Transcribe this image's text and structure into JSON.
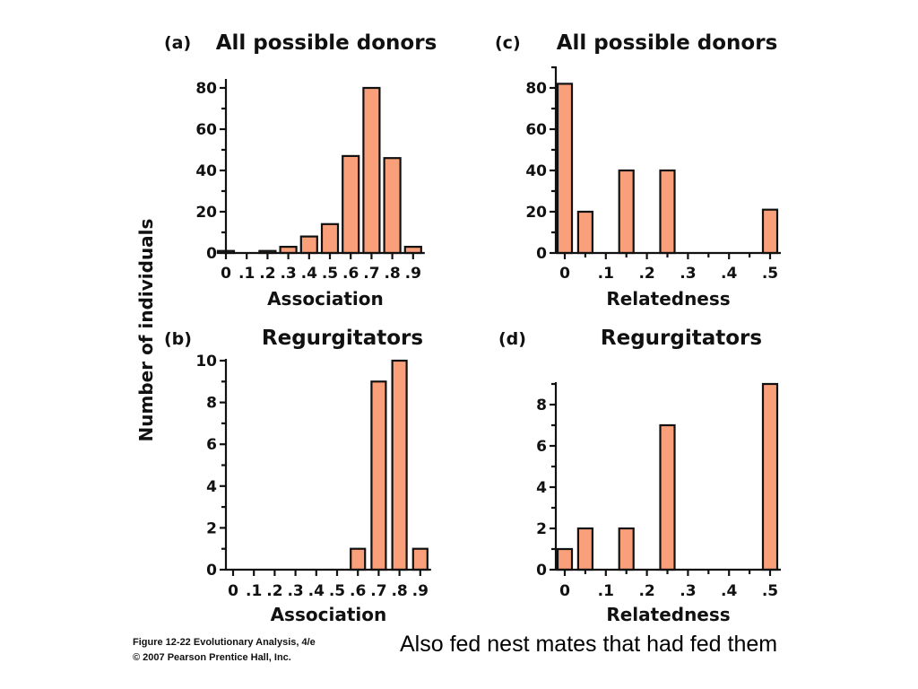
{
  "colors": {
    "bar_fill": "#F9A07B",
    "bar_stroke": "#111111",
    "text": "#111111"
  },
  "shared_ylabel": "Number of individuals",
  "credit": {
    "line1": "Figure 12-22  Evolutionary Analysis, 4/e",
    "line2": "© 2007 Pearson Prentice Hall, Inc."
  },
  "caption": "Also fed nest mates that had fed them",
  "chart_data": [
    {
      "type": "bar",
      "panel": "(a)",
      "title": "All possible donors",
      "xlabel": "Association",
      "ylabel": "Number of individuals",
      "categories": [
        "0",
        ".1",
        ".2",
        ".3",
        ".4",
        ".5",
        ".6",
        ".7",
        ".8",
        ".9"
      ],
      "values": [
        1,
        0,
        1,
        3,
        8,
        14,
        47,
        80,
        46,
        3
      ],
      "ylim": [
        0,
        90
      ],
      "yticks": [
        0,
        20,
        40,
        60,
        80
      ],
      "yticklabels": [
        "0",
        "20",
        "40",
        "60",
        "80"
      ],
      "grid": false
    },
    {
      "type": "bar",
      "panel": "(c)",
      "title": "All possible donors",
      "xlabel": "Relatedness",
      "ylabel": "Number of individuals",
      "categories": [
        "0",
        ".05",
        ".1",
        ".15",
        ".2",
        ".25",
        ".3",
        ".35",
        ".4",
        ".45",
        ".5"
      ],
      "values": [
        82,
        20,
        0,
        40,
        0,
        40,
        0,
        0,
        0,
        0,
        21
      ],
      "xticklabels": [
        "0",
        ".1",
        ".2",
        ".3",
        ".4",
        ".5"
      ],
      "ylim": [
        0,
        90
      ],
      "yticks": [
        0,
        20,
        40,
        60,
        80
      ],
      "yticklabels": [
        "0",
        "20",
        "40",
        "60",
        "80"
      ],
      "grid": false
    },
    {
      "type": "bar",
      "panel": "(b)",
      "title": "Regurgitators",
      "xlabel": "Association",
      "ylabel": "Number of individuals",
      "categories": [
        "0",
        ".1",
        ".2",
        ".3",
        ".4",
        ".5",
        ".6",
        ".7",
        ".8",
        ".9"
      ],
      "values": [
        0,
        0,
        0,
        0,
        0,
        0,
        1,
        9,
        10,
        1
      ],
      "ylim": [
        0,
        10
      ],
      "yticks": [
        0,
        2,
        4,
        6,
        8,
        10
      ],
      "yticklabels": [
        "0",
        "2",
        "4",
        "6",
        "8",
        "10"
      ],
      "grid": false
    },
    {
      "type": "bar",
      "panel": "(d)",
      "title": "Regurgitators",
      "xlabel": "Relatedness",
      "ylabel": "Number of individuals",
      "categories": [
        "0",
        ".05",
        ".1",
        ".15",
        ".2",
        ".25",
        ".3",
        ".35",
        ".4",
        ".45",
        ".5"
      ],
      "values": [
        1,
        2,
        0,
        2,
        0,
        7,
        0,
        0,
        0,
        0,
        9
      ],
      "xticklabels": [
        "0",
        ".1",
        ".2",
        ".3",
        ".4",
        ".5"
      ],
      "ylim": [
        0,
        9
      ],
      "yticks": [
        0,
        2,
        4,
        6,
        8
      ],
      "yticklabels": [
        "0",
        "2",
        "4",
        "6",
        "8"
      ],
      "grid": false
    }
  ]
}
